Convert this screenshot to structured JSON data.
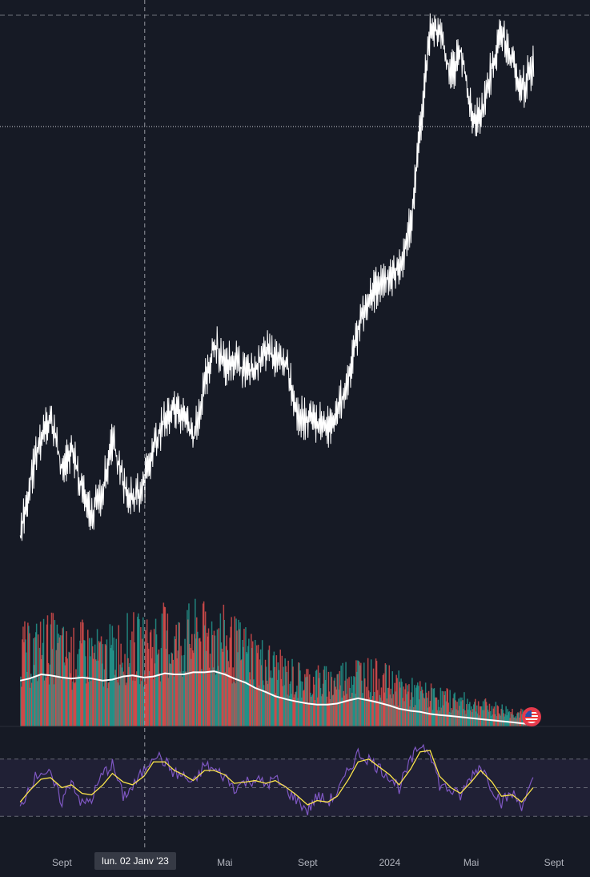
{
  "chart_data": {
    "type": "line",
    "title": "",
    "price_series": {
      "name": "",
      "color": "#ffffff",
      "x": [
        "2022-07-01",
        "2022-07-15",
        "2022-08-01",
        "2022-08-15",
        "2022-09-01",
        "2022-09-15",
        "2022-10-01",
        "2022-10-15",
        "2022-11-01",
        "2022-11-15",
        "2022-12-01",
        "2022-12-15",
        "2023-01-01",
        "2023-01-15",
        "2023-02-01",
        "2023-02-15",
        "2023-03-01",
        "2023-03-15",
        "2023-04-01",
        "2023-04-15",
        "2023-05-01",
        "2023-05-15",
        "2023-06-01",
        "2023-06-15",
        "2023-07-01",
        "2023-07-15",
        "2023-08-01",
        "2023-08-15",
        "2023-09-01",
        "2023-09-15",
        "2023-10-01",
        "2023-10-15",
        "2023-11-01",
        "2023-11-15",
        "2023-12-01",
        "2023-12-15",
        "2024-01-01",
        "2024-01-15",
        "2024-02-01",
        "2024-02-15",
        "2024-03-01",
        "2024-03-15",
        "2024-04-01",
        "2024-04-15",
        "2024-05-01",
        "2024-05-15",
        "2024-06-01",
        "2024-06-15",
        "2024-07-01",
        "2024-07-15",
        "2024-08-01"
      ],
      "values": [
        22,
        34,
        45,
        49,
        37,
        42,
        32,
        27,
        33,
        44,
        34,
        30,
        34,
        42,
        49,
        51,
        49,
        44,
        57,
        66,
        61,
        62,
        59,
        60,
        64,
        62,
        61,
        50,
        48,
        48,
        47,
        50,
        58,
        69,
        76,
        79,
        81,
        83,
        93,
        115,
        137,
        136,
        127,
        132,
        118,
        117,
        129,
        136,
        130,
        123,
        129
      ]
    },
    "volume_series": {
      "name": "",
      "up_color": "#26a69a",
      "down_color": "#ef5350",
      "values": [
        75,
        70,
        78,
        80,
        72,
        68,
        74,
        70,
        66,
        73,
        78,
        80,
        76,
        82,
        86,
        79,
        84,
        88,
        86,
        90,
        82,
        76,
        72,
        66,
        60,
        54,
        50,
        46,
        44,
        44,
        42,
        46,
        50,
        52,
        48,
        46,
        42,
        38,
        34,
        32,
        30,
        28,
        26,
        24,
        22,
        20,
        18,
        16,
        14,
        12,
        10
      ]
    },
    "volume_ma": {
      "name": "",
      "color": "#ffffff",
      "values": [
        44,
        46,
        50,
        49,
        47,
        46,
        47,
        46,
        44,
        45,
        48,
        49,
        47,
        48,
        51,
        50,
        50,
        52,
        52,
        53,
        50,
        46,
        42,
        37,
        33,
        29,
        26,
        24,
        22,
        21,
        21,
        22,
        25,
        27,
        25,
        23,
        20,
        17,
        15,
        14,
        12,
        11,
        10,
        9,
        8,
        7,
        6,
        5,
        4,
        3,
        2
      ]
    },
    "oscillator": {
      "name": "",
      "color": "#7e57c2",
      "signal_color": "#fbe54a",
      "band_upper": 70,
      "band_middle": 50,
      "band_lower": 30,
      "values": [
        35,
        52,
        62,
        58,
        40,
        56,
        38,
        42,
        60,
        66,
        44,
        50,
        62,
        74,
        68,
        60,
        58,
        52,
        66,
        62,
        58,
        50,
        54,
        56,
        52,
        56,
        48,
        42,
        34,
        44,
        40,
        46,
        62,
        74,
        70,
        64,
        58,
        50,
        68,
        80,
        76,
        52,
        48,
        44,
        58,
        66,
        50,
        40,
        46,
        38,
        54
      ],
      "signal": [
        40,
        48,
        56,
        57,
        50,
        52,
        46,
        45,
        52,
        60,
        54,
        52,
        58,
        68,
        68,
        62,
        59,
        55,
        62,
        62,
        59,
        53,
        54,
        55,
        53,
        55,
        50,
        45,
        38,
        41,
        40,
        44,
        56,
        68,
        70,
        65,
        59,
        52,
        63,
        75,
        76,
        58,
        50,
        46,
        54,
        62,
        54,
        44,
        45,
        40,
        50
      ]
    },
    "x_ticks": [
      {
        "label": "Sept",
        "date": "2022-09-01"
      },
      {
        "label": "Mai",
        "date": "2023-05-01"
      },
      {
        "label": "Sept",
        "date": "2023-09-01"
      },
      {
        "label": "2024",
        "date": "2024-01-01"
      },
      {
        "label": "Mai",
        "date": "2024-05-01"
      },
      {
        "label": "Sept",
        "date": "2024-09-01"
      }
    ],
    "crosshair_label": "lun. 02 Janv '23",
    "crosshair_date": "2023-01-02",
    "grid": false,
    "background": "#161a25"
  }
}
